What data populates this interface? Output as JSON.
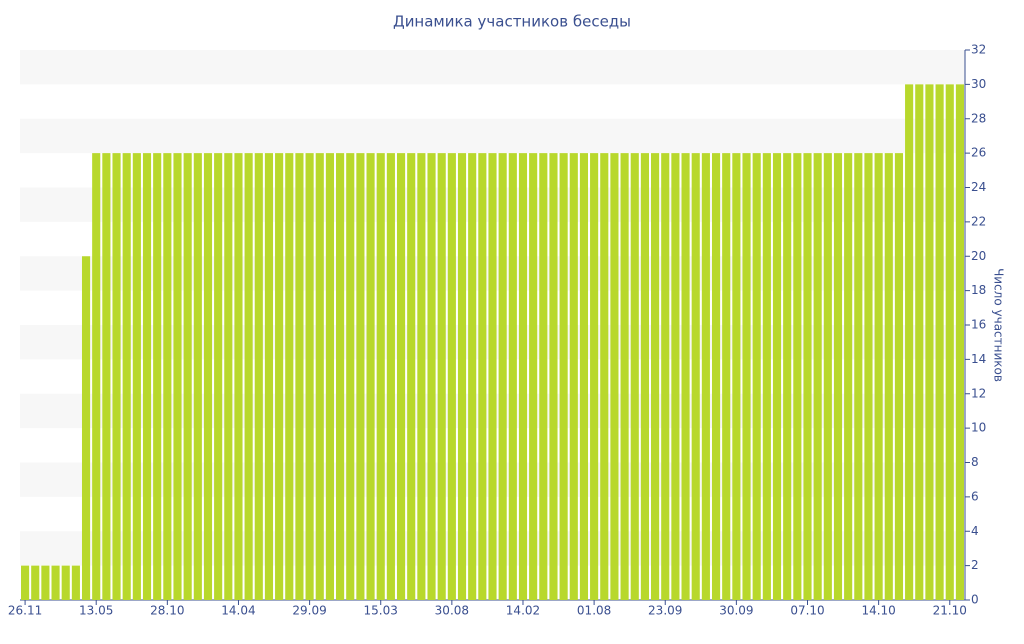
{
  "chart_data": {
    "type": "bar",
    "title": "Динамика участников беседы",
    "y_label": "Число участников",
    "categories": [
      "26.11",
      null,
      null,
      null,
      null,
      null,
      null,
      "13.05",
      null,
      null,
      null,
      null,
      null,
      null,
      "28.10",
      null,
      null,
      null,
      null,
      null,
      null,
      "14.04",
      null,
      null,
      null,
      null,
      null,
      null,
      "29.09",
      null,
      null,
      null,
      null,
      null,
      null,
      "15.03",
      null,
      null,
      null,
      null,
      null,
      null,
      "30.08",
      null,
      null,
      null,
      null,
      null,
      null,
      "14.02",
      null,
      null,
      null,
      null,
      null,
      null,
      "01.08",
      null,
      null,
      null,
      null,
      null,
      null,
      "23.09",
      null,
      null,
      null,
      null,
      null,
      null,
      "30.09",
      null,
      null,
      null,
      null,
      null,
      null,
      "07.10",
      null,
      null,
      null,
      null,
      null,
      null,
      "14.10",
      null,
      null,
      null,
      null,
      null,
      null,
      "21.10",
      null
    ],
    "values": [
      2,
      2,
      2,
      2,
      2,
      2,
      20,
      26,
      26,
      26,
      26,
      26,
      26,
      26,
      26,
      26,
      26,
      26,
      26,
      26,
      26,
      26,
      26,
      26,
      26,
      26,
      26,
      26,
      26,
      26,
      26,
      26,
      26,
      26,
      26,
      26,
      26,
      26,
      26,
      26,
      26,
      26,
      26,
      26,
      26,
      26,
      26,
      26,
      26,
      26,
      26,
      26,
      26,
      26,
      26,
      26,
      26,
      26,
      26,
      26,
      26,
      26,
      26,
      26,
      26,
      26,
      26,
      26,
      26,
      26,
      26,
      26,
      26,
      26,
      26,
      26,
      26,
      26,
      26,
      26,
      26,
      26,
      26,
      26,
      26,
      26,
      26,
      30,
      30,
      30,
      30,
      30,
      30
    ],
    "color": "#b8d82c",
    "ylim": [
      0,
      32
    ],
    "yticks": [
      0,
      2,
      4,
      6,
      8,
      10,
      12,
      14,
      16,
      18,
      20,
      22,
      24,
      26,
      28,
      30,
      32
    ],
    "y_axis_side": "right",
    "banded_grid": true
  }
}
